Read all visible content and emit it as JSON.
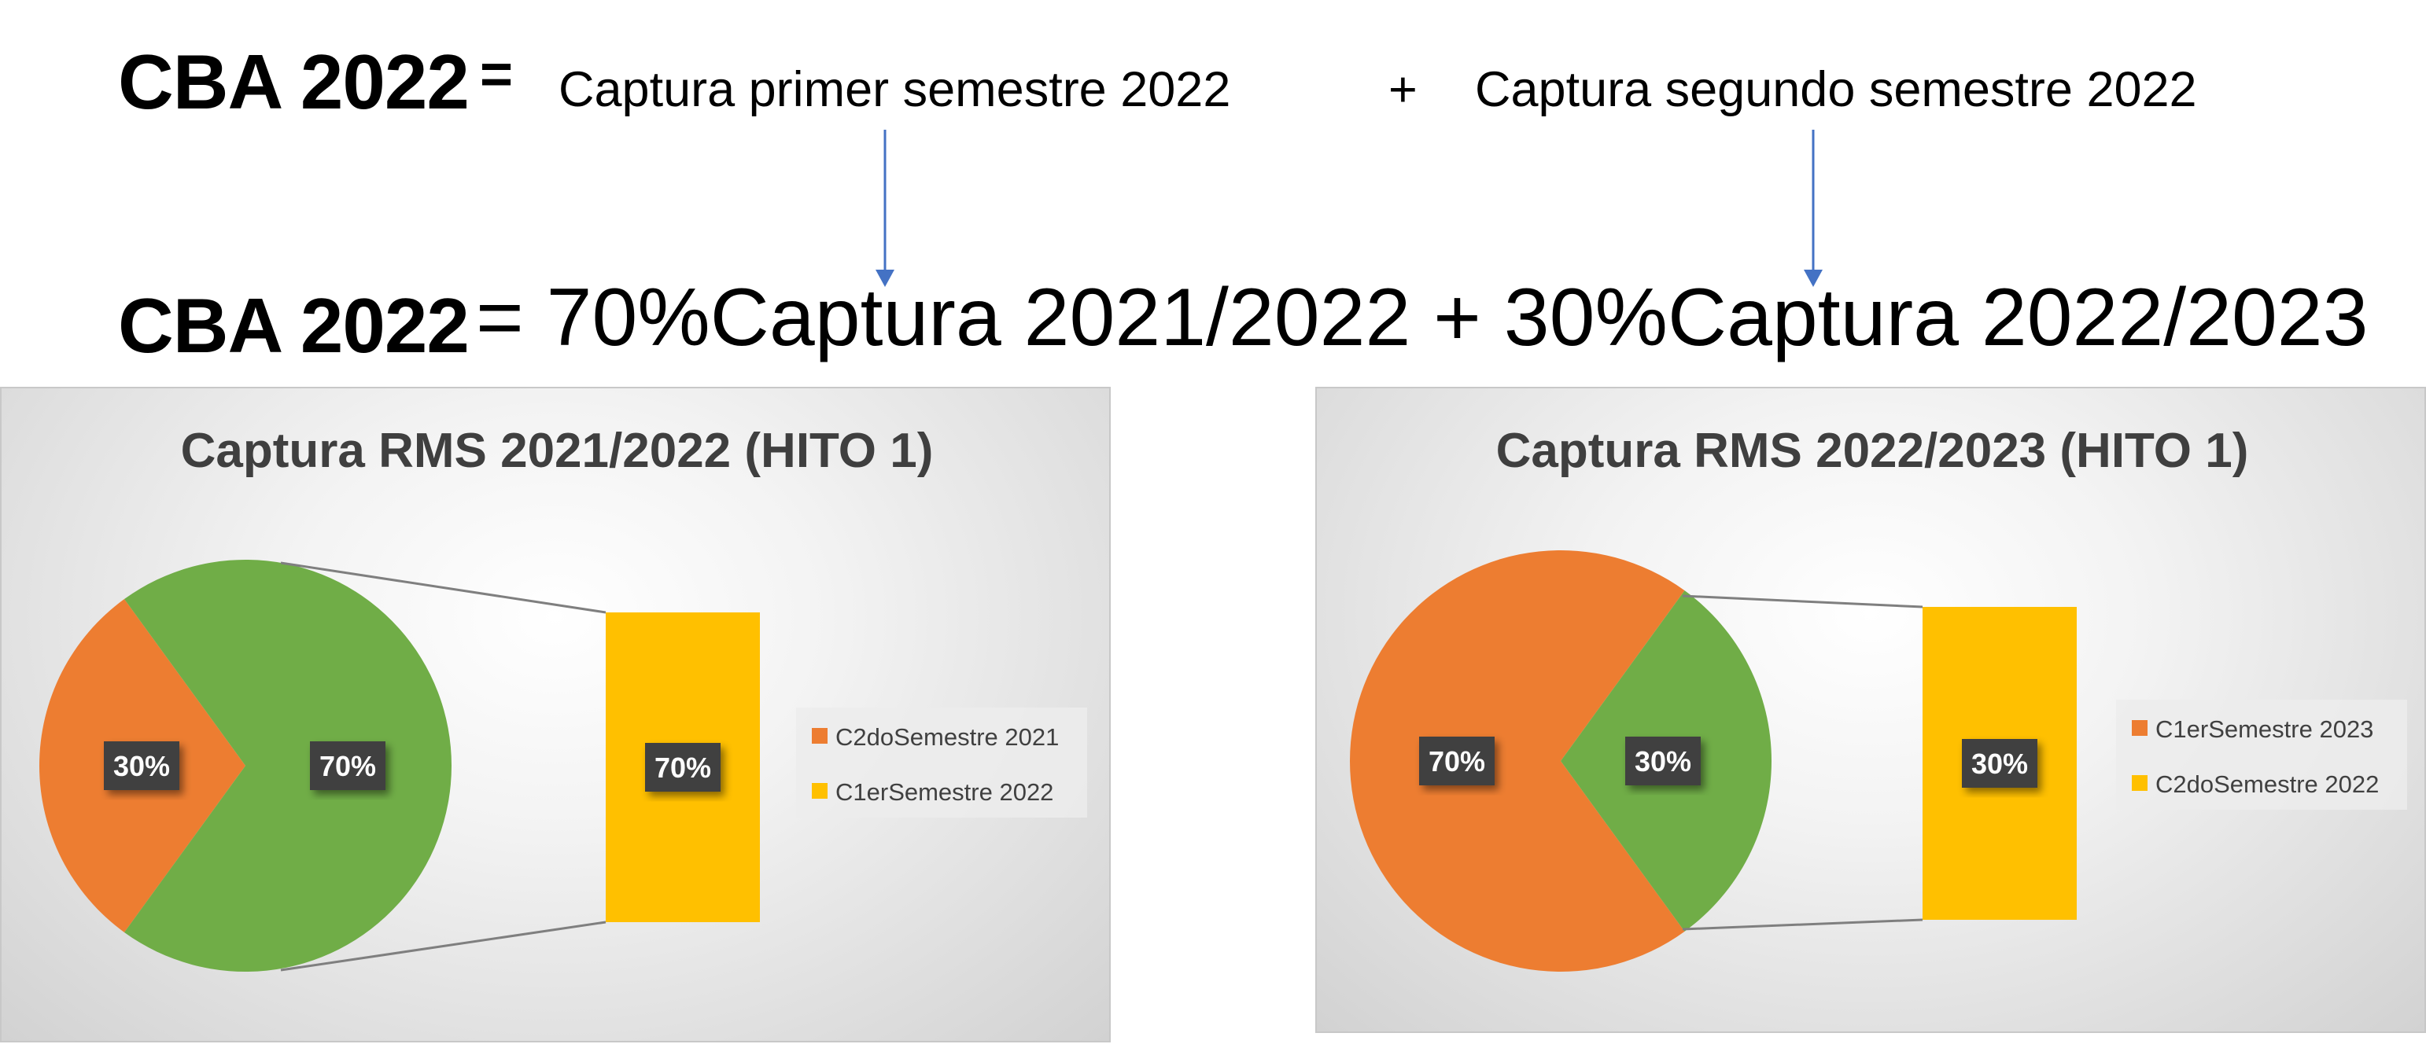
{
  "equation1": {
    "lhs": "CBA 2022",
    "equals": "=",
    "term1": "Captura primer semestre 2022",
    "plus": "+",
    "term2": "Captura segundo semestre 2022"
  },
  "equation2": {
    "lhs": "CBA 2022",
    "rhs": " = 70%Captura 2021/2022 + 30%Captura 2022/2023"
  },
  "colors": {
    "orange": "#ED7D31",
    "green": "#70AD47",
    "yellow": "#FFC000",
    "label_bg": "#404040",
    "arrow": "#4472C4"
  },
  "chart_data": [
    {
      "type": "pie",
      "subtype": "bar-of-pie",
      "title": "Captura RMS 2021/2022 (HITO 1)",
      "slices": [
        {
          "label": "30%",
          "value": 30,
          "color": "#ED7D31"
        },
        {
          "label": "70%",
          "value": 70,
          "color": "#70AD47"
        }
      ],
      "secondary_bar": {
        "label": "70%",
        "value": 70,
        "color": "#FFC000"
      },
      "legend": [
        {
          "name": "C2doSemestre 2021",
          "color": "#ED7D31"
        },
        {
          "name": "C1erSemestre 2022",
          "color": "#FFC000"
        }
      ],
      "legend_position": "right"
    },
    {
      "type": "pie",
      "subtype": "bar-of-pie",
      "title": "Captura RMS 2022/2023 (HITO 1)",
      "slices": [
        {
          "label": "70%",
          "value": 70,
          "color": "#ED7D31"
        },
        {
          "label": "30%",
          "value": 30,
          "color": "#70AD47"
        }
      ],
      "secondary_bar": {
        "label": "30%",
        "value": 30,
        "color": "#FFC000"
      },
      "legend": [
        {
          "name": "C1erSemestre 2023",
          "color": "#ED7D31"
        },
        {
          "name": "C2doSemestre 2022",
          "color": "#FFC000"
        }
      ],
      "legend_position": "right"
    }
  ]
}
